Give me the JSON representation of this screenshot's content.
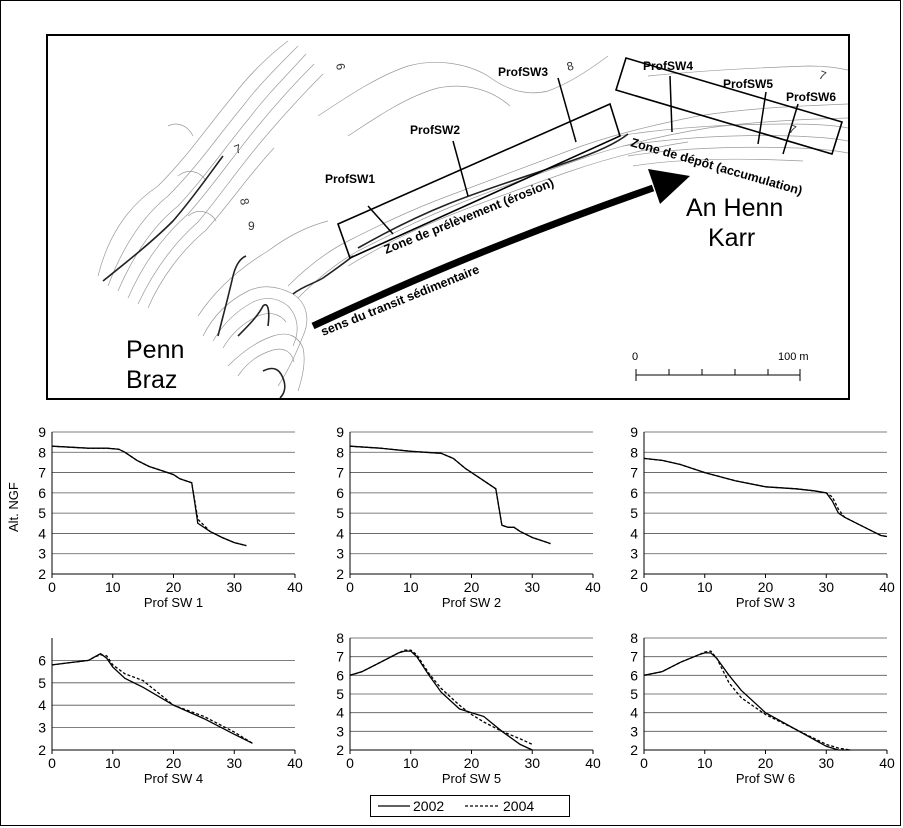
{
  "map": {
    "labels": {
      "penn_line1": "Penn",
      "penn_line2": "Braz",
      "an_henn_line1": "An Henn",
      "an_henn_line2": "Karr",
      "zone_prelevement": "Zone de prélèvement (érosion)",
      "zone_depot": "Zone de dépôt (accumulation)",
      "transit": "sens du transit sédimentaire"
    },
    "profiles": [
      "ProfSW1",
      "ProfSW2",
      "ProfSW3",
      "ProfSW4",
      "ProfSW5",
      "ProfSW6"
    ],
    "contour_labels": [
      "6",
      "7",
      "8",
      "9",
      "8",
      "7",
      "7"
    ],
    "scale": {
      "start": "0",
      "end": "100 m"
    }
  },
  "y_axis_label": "Alt. NGF",
  "legend": {
    "entries": [
      {
        "label": "2002",
        "style": "solid"
      },
      {
        "label": "2004",
        "style": "dashed"
      }
    ]
  },
  "chart_data": [
    {
      "type": "line",
      "title": "Prof SW 1",
      "xlim": [
        0,
        40
      ],
      "ylim": [
        2,
        9
      ],
      "xticks": [
        "0",
        "10",
        "20",
        "30",
        "40"
      ],
      "yticks": [
        "2",
        "3",
        "4",
        "5",
        "6",
        "7",
        "8",
        "9"
      ],
      "grid": true,
      "series": [
        {
          "name": "2002",
          "style": "solid",
          "x": [
            0,
            3,
            6,
            9,
            11,
            12,
            14,
            16,
            18,
            20,
            21,
            22,
            23,
            23.5,
            24,
            25,
            26,
            28,
            30,
            32
          ],
          "y": [
            8.3,
            8.25,
            8.2,
            8.2,
            8.15,
            8.0,
            7.6,
            7.3,
            7.1,
            6.9,
            6.7,
            6.6,
            6.5,
            5.5,
            4.5,
            4.3,
            4.1,
            3.8,
            3.55,
            3.4
          ]
        },
        {
          "name": "2004",
          "style": "dashed",
          "x": [
            0,
            3,
            6,
            9,
            11,
            12,
            14,
            16,
            18,
            20,
            21,
            22,
            23,
            23.5,
            24,
            25,
            26,
            28,
            30,
            32
          ],
          "y": [
            8.3,
            8.25,
            8.2,
            8.2,
            8.15,
            8.0,
            7.6,
            7.3,
            7.1,
            6.9,
            6.7,
            6.6,
            6.5,
            5.6,
            4.7,
            4.4,
            4.1,
            3.8,
            3.55,
            3.4
          ]
        }
      ]
    },
    {
      "type": "line",
      "title": "Prof SW 2",
      "xlim": [
        0,
        40
      ],
      "ylim": [
        2,
        9
      ],
      "xticks": [
        "0",
        "10",
        "20",
        "30",
        "40"
      ],
      "yticks": [
        "2",
        "3",
        "4",
        "5",
        "6",
        "7",
        "8",
        "9"
      ],
      "grid": true,
      "series": [
        {
          "name": "2002",
          "style": "solid",
          "x": [
            0,
            5,
            10,
            15,
            17,
            19,
            21,
            23,
            24,
            25,
            26,
            27,
            28,
            30,
            32,
            33
          ],
          "y": [
            8.3,
            8.2,
            8.05,
            7.95,
            7.7,
            7.2,
            6.8,
            6.4,
            6.2,
            4.4,
            4.3,
            4.3,
            4.1,
            3.8,
            3.6,
            3.5
          ]
        },
        {
          "name": "2004",
          "style": "dashed",
          "x": [
            0,
            5,
            10,
            15,
            17,
            19,
            21,
            23,
            24,
            25,
            26,
            27,
            28,
            30,
            32,
            33
          ],
          "y": [
            8.3,
            8.2,
            8.05,
            7.95,
            7.7,
            7.2,
            6.8,
            6.4,
            6.2,
            4.4,
            4.3,
            4.3,
            4.1,
            3.8,
            3.6,
            3.5
          ]
        }
      ]
    },
    {
      "type": "line",
      "title": "Prof SW 3",
      "xlim": [
        0,
        40
      ],
      "ylim": [
        2,
        9
      ],
      "xticks": [
        "0",
        "10",
        "20",
        "30",
        "40"
      ],
      "yticks": [
        "2",
        "3",
        "4",
        "5",
        "6",
        "7",
        "8",
        "9"
      ],
      "grid": true,
      "series": [
        {
          "name": "2002",
          "style": "solid",
          "x": [
            0,
            3,
            6,
            10,
            15,
            20,
            25,
            28,
            30,
            31,
            32,
            33,
            35,
            37,
            39,
            40
          ],
          "y": [
            7.7,
            7.6,
            7.4,
            7.0,
            6.6,
            6.3,
            6.2,
            6.1,
            6.0,
            5.6,
            5.0,
            4.8,
            4.5,
            4.2,
            3.9,
            3.85
          ]
        },
        {
          "name": "2004",
          "style": "dashed",
          "x": [
            0,
            3,
            6,
            10,
            15,
            20,
            25,
            28,
            30,
            31,
            32,
            33,
            35,
            37,
            39,
            40
          ],
          "y": [
            7.7,
            7.6,
            7.4,
            7.0,
            6.6,
            6.3,
            6.2,
            6.1,
            6.0,
            5.8,
            5.2,
            4.8,
            4.5,
            4.2,
            3.9,
            3.85
          ]
        }
      ]
    },
    {
      "type": "line",
      "title": "Prof SW 4",
      "xlim": [
        0,
        40
      ],
      "ylim": [
        2,
        7
      ],
      "xticks": [
        "0",
        "10",
        "20",
        "30",
        "40"
      ],
      "yticks": [
        "2",
        "3",
        "4",
        "5",
        "6"
      ],
      "grid": true,
      "series": [
        {
          "name": "2002",
          "style": "solid",
          "x": [
            0,
            3,
            6,
            7,
            8,
            9,
            10,
            12,
            15,
            20,
            25,
            30,
            33
          ],
          "y": [
            5.8,
            5.9,
            6.0,
            6.15,
            6.3,
            6.1,
            5.7,
            5.2,
            4.8,
            4.0,
            3.4,
            2.7,
            2.3
          ]
        },
        {
          "name": "2004",
          "style": "dashed",
          "x": [
            0,
            3,
            6,
            7,
            8,
            9,
            10,
            12,
            15,
            20,
            25,
            30,
            33
          ],
          "y": [
            5.8,
            5.9,
            6.0,
            6.15,
            6.25,
            6.2,
            5.8,
            5.4,
            5.1,
            4.0,
            3.5,
            2.8,
            2.3
          ]
        }
      ]
    },
    {
      "type": "line",
      "title": "Prof SW 5",
      "xlim": [
        0,
        40
      ],
      "ylim": [
        2,
        8
      ],
      "xticks": [
        "0",
        "10",
        "20",
        "30",
        "40"
      ],
      "yticks": [
        "2",
        "3",
        "4",
        "5",
        "6",
        "7",
        "8"
      ],
      "grid": true,
      "series": [
        {
          "name": "2002",
          "style": "solid",
          "x": [
            0,
            2,
            5,
            8,
            9,
            10,
            11,
            13,
            15,
            18,
            20,
            22,
            25,
            28,
            30
          ],
          "y": [
            6.0,
            6.2,
            6.7,
            7.2,
            7.3,
            7.3,
            7.0,
            6.0,
            5.1,
            4.2,
            4.0,
            3.8,
            3.0,
            2.3,
            2.0
          ]
        },
        {
          "name": "2004",
          "style": "dashed",
          "x": [
            0,
            2,
            5,
            8,
            9,
            10,
            11,
            13,
            15,
            18,
            20,
            22,
            25,
            28,
            30
          ],
          "y": [
            6.0,
            6.2,
            6.7,
            7.2,
            7.35,
            7.35,
            7.1,
            6.1,
            5.3,
            4.4,
            3.9,
            3.5,
            3.0,
            2.6,
            2.3
          ]
        }
      ]
    },
    {
      "type": "line",
      "title": "Prof SW 6",
      "xlim": [
        0,
        40
      ],
      "ylim": [
        2,
        8
      ],
      "xticks": [
        "0",
        "10",
        "20",
        "30",
        "40"
      ],
      "yticks": [
        "2",
        "3",
        "4",
        "5",
        "6",
        "7",
        "8"
      ],
      "grid": true,
      "series": [
        {
          "name": "2002",
          "style": "solid",
          "x": [
            0,
            3,
            6,
            9,
            10,
            11,
            12,
            14,
            16,
            20,
            25,
            30,
            32,
            34
          ],
          "y": [
            6.0,
            6.2,
            6.7,
            7.1,
            7.2,
            7.2,
            6.9,
            6.0,
            5.2,
            4.0,
            3.1,
            2.2,
            2.0,
            2.0
          ]
        },
        {
          "name": "2004",
          "style": "dashed",
          "x": [
            0,
            3,
            6,
            9,
            10,
            11,
            12,
            14,
            16,
            20,
            25,
            30,
            32,
            34
          ],
          "y": [
            6.0,
            6.2,
            6.7,
            7.1,
            7.25,
            7.3,
            6.9,
            5.6,
            4.8,
            3.9,
            3.1,
            2.3,
            2.1,
            2.0
          ]
        }
      ]
    }
  ]
}
